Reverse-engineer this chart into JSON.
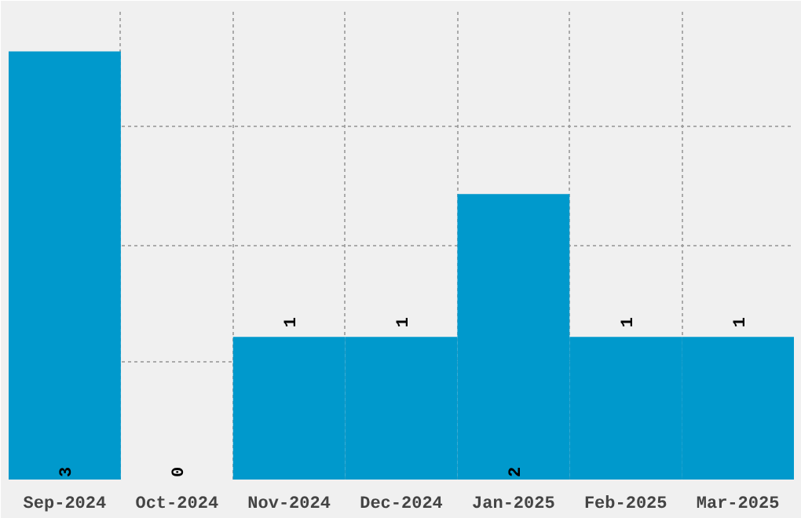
{
  "chart_data": {
    "type": "bar",
    "categories": [
      "Sep-2024",
      "Oct-2024",
      "Nov-2024",
      "Dec-2024",
      "Jan-2025",
      "Feb-2025",
      "Mar-2025"
    ],
    "values": [
      3,
      0,
      1,
      1,
      2,
      1,
      1
    ],
    "color": "#0099cc",
    "data_labels": true,
    "ylim": [
      0,
      3.3
    ],
    "yticks": [
      {
        "value": 0.83,
        "label": null
      },
      {
        "value": 1.64,
        "label": null
      },
      {
        "value": 2.48,
        "label": null
      }
    ],
    "tick_labels": "x",
    "grid": true
  }
}
